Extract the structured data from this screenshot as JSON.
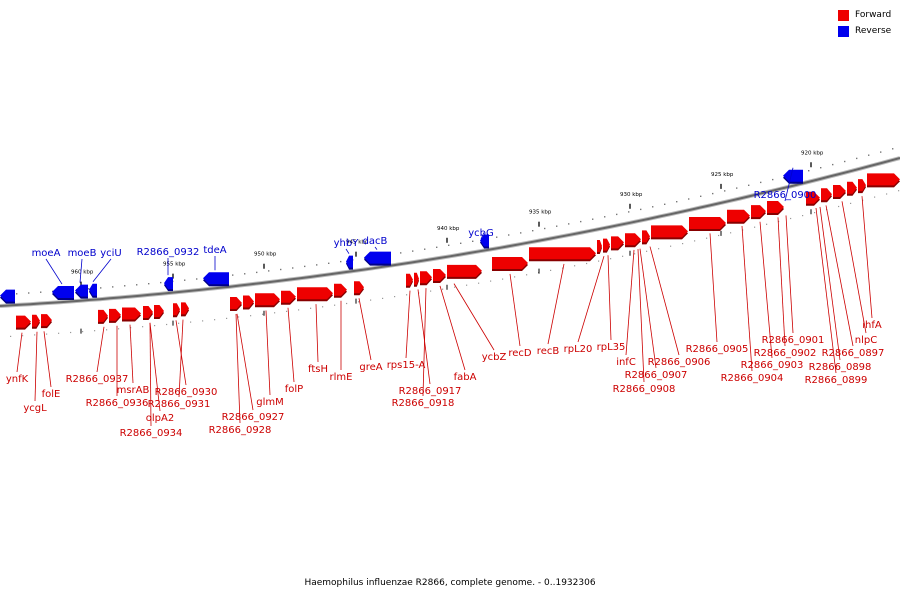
{
  "caption": "Haemophilus influenzae R2866, complete genome. - 0..1932306",
  "colors": {
    "forward": "#ee0000",
    "reverse": "#0000ee",
    "forward_label": "#cc0000",
    "reverse_label": "#0000cc",
    "backbone": "#888888"
  },
  "legend": [
    {
      "label": "Forward",
      "color": "#ee0000"
    },
    {
      "label": "Reverse",
      "color": "#0000ee"
    }
  ],
  "scale": {
    "unit": "kbp",
    "ticks": [
      {
        "label": "960 kbp",
        "kbp": 960
      },
      {
        "label": "955 kbp",
        "kbp": 955
      },
      {
        "label": "950 kbp",
        "kbp": 950
      },
      {
        "label": "945 kbp",
        "kbp": 945
      },
      {
        "label": "940 kbp",
        "kbp": 940
      },
      {
        "label": "935 kbp",
        "kbp": 935
      },
      {
        "label": "930 kbp",
        "kbp": 930
      },
      {
        "label": "925 kbp",
        "kbp": 925
      },
      {
        "label": "920 kbp",
        "kbp": 920
      }
    ]
  },
  "reverse_genes": [
    {
      "name": "moeA"
    },
    {
      "name": "moeB"
    },
    {
      "name": "yciU"
    },
    {
      "name": "R2866_0932"
    },
    {
      "name": "tdeA"
    },
    {
      "name": "yhbY"
    },
    {
      "name": "dacB"
    },
    {
      "name": "ycbG"
    },
    {
      "name": "R2866_0900"
    }
  ],
  "forward_genes": [
    {
      "name": "ynfK"
    },
    {
      "name": "ycgL"
    },
    {
      "name": "folE"
    },
    {
      "name": "R2866_0937"
    },
    {
      "name": "msrAB"
    },
    {
      "name": "R2866_0936"
    },
    {
      "name": "olpA2"
    },
    {
      "name": "R2866_0934"
    },
    {
      "name": "R2866_0930"
    },
    {
      "name": "R2866_0931"
    },
    {
      "name": "R2866_0927"
    },
    {
      "name": "R2866_0928"
    },
    {
      "name": "glmM"
    },
    {
      "name": "folP"
    },
    {
      "name": "ftsH"
    },
    {
      "name": "rlmE"
    },
    {
      "name": "greA"
    },
    {
      "name": "rps15-A"
    },
    {
      "name": "R2866_0917"
    },
    {
      "name": "R2866_0918"
    },
    {
      "name": "fabA"
    },
    {
      "name": "ycbZ"
    },
    {
      "name": "recD"
    },
    {
      "name": "recB"
    },
    {
      "name": "rpL20"
    },
    {
      "name": "rpL35"
    },
    {
      "name": "infC"
    },
    {
      "name": "R2866_0907"
    },
    {
      "name": "R2866_0908"
    },
    {
      "name": "R2866_0906"
    },
    {
      "name": "R2866_0905"
    },
    {
      "name": "R2866_0904"
    },
    {
      "name": "R2866_0903"
    },
    {
      "name": "R2866_0902"
    },
    {
      "name": "R2866_0901"
    },
    {
      "name": "R2866_0897"
    },
    {
      "name": "R2866_0898"
    },
    {
      "name": "R2866_0899"
    },
    {
      "name": "nlpC"
    },
    {
      "name": "ihfA"
    }
  ]
}
